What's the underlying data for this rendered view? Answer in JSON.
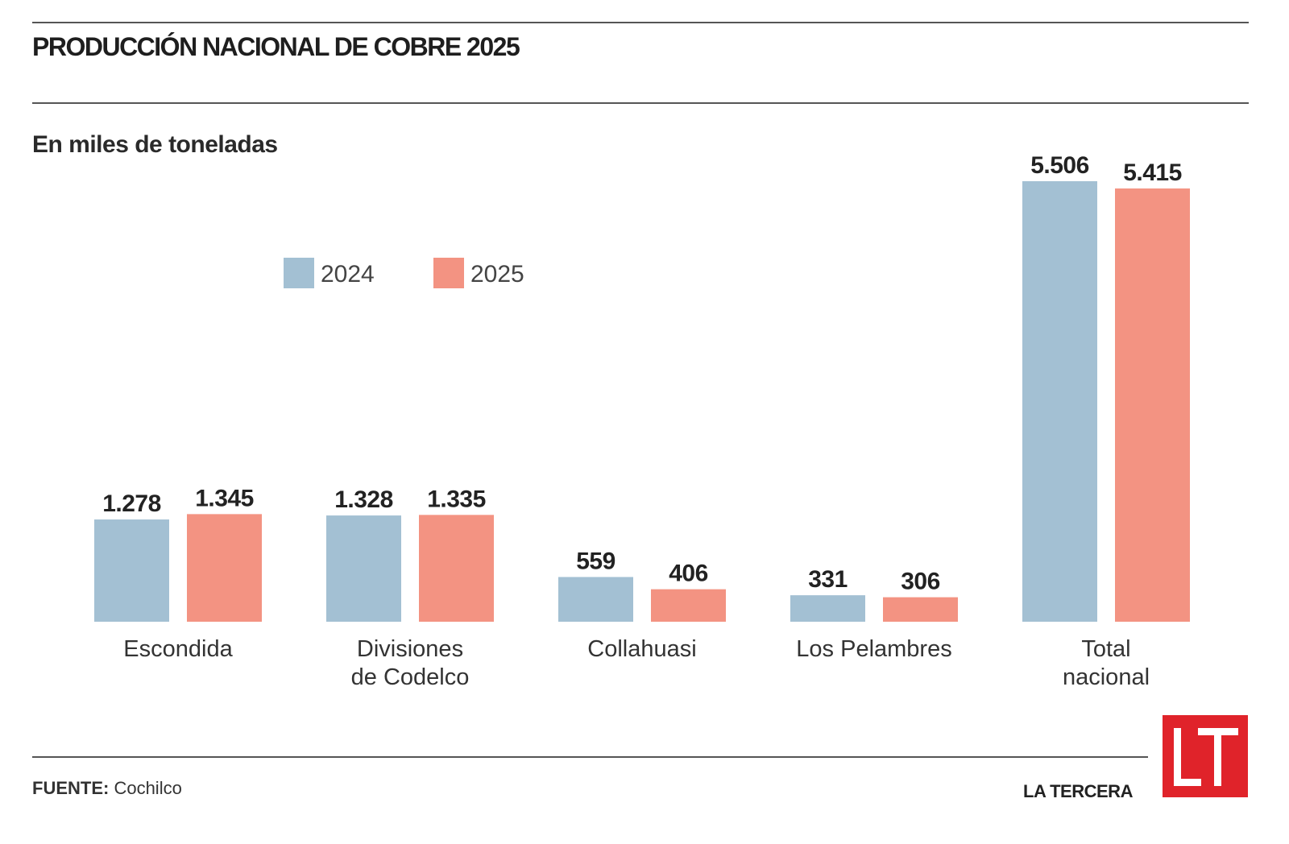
{
  "title": "PRODUCCIÓN NACIONAL DE COBRE 2025",
  "subtitle": "En miles de toneladas",
  "footer": {
    "source_label": "FUENTE:",
    "source_value": "Cochilco",
    "brand": "LA TERCERA",
    "logo_text": "LT"
  },
  "chart_data": {
    "type": "bar",
    "title": "PRODUCCIÓN NACIONAL DE COBRE 2025",
    "ylabel": "En miles de toneladas",
    "xlabel": "",
    "categories": [
      [
        "Escondida"
      ],
      [
        "Divisiones",
        "de Codelco"
      ],
      [
        "Collahuasi"
      ],
      [
        "Los Pelambres"
      ],
      [
        "Total",
        "nacional"
      ]
    ],
    "series": [
      {
        "name": "2024",
        "color": "#a3c0d3",
        "values": [
          1278,
          1328,
          559,
          331,
          5506
        ],
        "labels": [
          "1.278",
          "1.328",
          "559",
          "331",
          "5.506"
        ]
      },
      {
        "name": "2025",
        "color": "#f39382",
        "values": [
          1345,
          1335,
          406,
          306,
          5415
        ],
        "labels": [
          "1.345",
          "1.335",
          "406",
          "306",
          "5.415"
        ]
      }
    ],
    "ylim": [
      0,
      5506
    ],
    "grid": false,
    "legend_position": "top-left"
  }
}
